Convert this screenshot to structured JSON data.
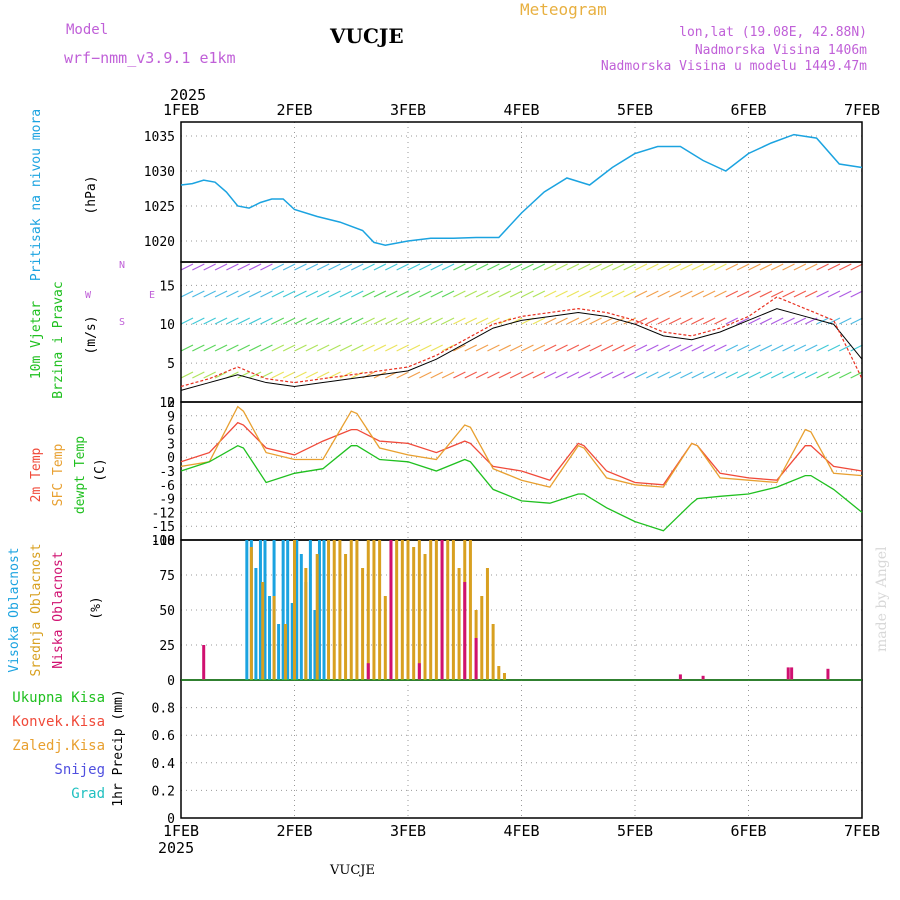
{
  "header": {
    "model_label": "Model",
    "model_name": "wrf−nmm_v3.9.1  e1km",
    "station": "VUCJE",
    "product": "Meteogram",
    "lonlat": "lon,lat (19.08E, 42.88N)",
    "altitude": "Nadmorska Visina 1406m",
    "model_altitude": "Nadmorska Visina u modelu 1449.47m",
    "year_top": "2025",
    "year_bottom": "2025",
    "footer_station": "VUCJE",
    "credit": "made by Angel"
  },
  "colors": {
    "pressure": "#1ba3e0",
    "t2m": "#f04a3a",
    "sfc": "#e8a030",
    "dew": "#20c020",
    "wind_black": "#000000",
    "wind_red": "#e83020",
    "cloud_high": "#1ba3e0",
    "cloud_mid": "#d8a020",
    "cloud_low": "#d01070",
    "label_purple": "#c060d8",
    "label_orange": "#e8b040"
  },
  "x_ticks": [
    "1FEB",
    "2FEB",
    "3FEB",
    "4FEB",
    "5FEB",
    "6FEB",
    "7FEB"
  ],
  "chart_data": [
    {
      "type": "line",
      "panel": "pressure",
      "ylabel_lines": [
        "Pritisak na nivou mora",
        "(hPa)"
      ],
      "ylim": [
        1017,
        1037
      ],
      "yticks": [
        1020,
        1025,
        1030,
        1035
      ],
      "grid": true,
      "x_days": [
        0,
        0.1,
        0.2,
        0.3,
        0.4,
        0.5,
        0.6,
        0.7,
        0.8,
        0.9,
        1.0,
        1.2,
        1.4,
        1.6,
        1.7,
        1.8,
        2.0,
        2.2,
        2.4,
        2.6,
        2.8,
        3.0,
        3.2,
        3.4,
        3.6,
        3.8,
        4.0,
        4.2,
        4.4,
        4.6,
        4.8,
        5.0,
        5.2,
        5.4,
        5.6,
        5.8,
        6.0
      ],
      "series": [
        {
          "values": [
            1028,
            1028.2,
            1028.7,
            1028.4,
            1027,
            1025,
            1024.7,
            1025.5,
            1026,
            1026,
            1024.5,
            1023.5,
            1022.7,
            1021.5,
            1019.8,
            1019.4,
            1020,
            1020.4,
            1020.4,
            1020.5,
            1020.5,
            1024,
            1027,
            1029,
            1028,
            1030.5,
            1032.5,
            1033.5,
            1033.5,
            1031.5,
            1030,
            1032.5,
            1034,
            1035.2,
            1034.7,
            1031,
            1030.5
          ]
        }
      ]
    },
    {
      "type": "line",
      "panel": "wind",
      "ylabel_lines": [
        "10m Vjetar",
        "Brzina i Pravac",
        "(m/s)"
      ],
      "compass": [
        "N",
        "E",
        "S",
        "W"
      ],
      "ylim": [
        0,
        18
      ],
      "yticks": [
        0,
        5,
        10,
        15
      ],
      "grid": true,
      "x_days": [
        0,
        0.25,
        0.5,
        0.75,
        1.0,
        1.25,
        1.5,
        1.75,
        2.0,
        2.25,
        2.5,
        2.75,
        3.0,
        3.25,
        3.5,
        3.75,
        4.0,
        4.25,
        4.5,
        4.75,
        5.0,
        5.25,
        5.5,
        5.75,
        6.0
      ],
      "series": [
        {
          "values": [
            1.5,
            2.5,
            3.5,
            2.5,
            2,
            2.5,
            3,
            3.5,
            4,
            5.5,
            7.5,
            9.5,
            10.5,
            11,
            11.5,
            11,
            10,
            8.5,
            8,
            9,
            10.5,
            12,
            11,
            10,
            5.5
          ]
        },
        {
          "values": [
            2,
            3,
            4.5,
            3,
            2.5,
            3,
            3.5,
            4,
            4.5,
            6,
            8,
            10,
            11,
            11.5,
            12,
            11.5,
            10.5,
            9,
            8.5,
            9.5,
            11,
            13.5,
            12,
            10.5,
            3
          ]
        }
      ]
    },
    {
      "type": "line",
      "panel": "temperature",
      "ylabel_lines": [
        "2m Temp",
        "SFC Temp",
        "dewpt Temp",
        "(C)"
      ],
      "ylim": [
        -18,
        12
      ],
      "yticks": [
        -18,
        -15,
        -12,
        -9,
        -6,
        -3,
        0,
        3,
        6,
        9,
        12
      ],
      "grid": true,
      "x_days": [
        0,
        0.25,
        0.5,
        0.55,
        0.75,
        1.0,
        1.25,
        1.5,
        1.55,
        1.75,
        2.0,
        2.25,
        2.5,
        2.55,
        2.75,
        3.0,
        3.25,
        3.5,
        3.55,
        3.75,
        4.0,
        4.25,
        4.5,
        4.55,
        4.75,
        5.0,
        5.25,
        5.5,
        5.55,
        5.75,
        6.0
      ],
      "series": [
        {
          "values": [
            -1,
            1,
            7.5,
            7,
            2,
            0.5,
            3.5,
            6,
            6,
            3.5,
            3,
            1,
            3.5,
            3,
            -2,
            -3,
            -5,
            3,
            2.5,
            -3,
            -5.5,
            -6,
            3,
            2.5,
            -3.5,
            -4.5,
            -5,
            2.5,
            2.5,
            -2,
            -3
          ]
        },
        {
          "values": [
            -2,
            -1,
            11,
            10,
            1,
            -0.5,
            -0.5,
            10,
            9.5,
            2,
            0.5,
            -0.5,
            7,
            6.5,
            -2.5,
            -5,
            -6.5,
            2.5,
            2,
            -4.5,
            -6,
            -6.5,
            3,
            2.5,
            -4.5,
            -5,
            -5.5,
            6,
            5.5,
            -3.5,
            -4
          ]
        },
        {
          "values": [
            -3,
            -1,
            2.5,
            2,
            -5.5,
            -3.5,
            -2.5,
            2.5,
            2.5,
            -0.5,
            -1,
            -3,
            -0.5,
            -1,
            -7,
            -9.5,
            -10,
            -8,
            -8,
            -11,
            -14,
            -16,
            -10,
            -9,
            -8.5,
            -8,
            -6.5,
            -4,
            -4,
            -7,
            -12
          ]
        }
      ]
    },
    {
      "type": "bar",
      "panel": "clouds",
      "ylabel_lines": [
        "Visoka Oblacnost",
        "Srednja Oblacnost",
        "Niska Oblacnost",
        "(%)"
      ],
      "ylim": [
        0,
        100
      ],
      "yticks": [
        0,
        25,
        50,
        75,
        100
      ],
      "grid": true,
      "series": [
        {
          "x_days": [
            0.58,
            0.62,
            0.66,
            0.7,
            0.74,
            0.78,
            0.82,
            0.86,
            0.9,
            0.94,
            0.98,
            1.02,
            1.06,
            1.1,
            1.14,
            1.18,
            1.22,
            1.26
          ],
          "values": [
            100,
            100,
            80,
            100,
            100,
            60,
            100,
            40,
            100,
            100,
            55,
            100,
            90,
            70,
            100,
            50,
            100,
            100
          ]
        },
        {
          "x_days": [
            0.62,
            0.72,
            0.82,
            0.92,
            1.0,
            1.1,
            1.2,
            1.3,
            1.35,
            1.4,
            1.45,
            1.5,
            1.55,
            1.6,
            1.65,
            1.7,
            1.75,
            1.8,
            1.85,
            1.9,
            1.95,
            2.0,
            2.05,
            2.1,
            2.15,
            2.2,
            2.25,
            2.3,
            2.35,
            2.4,
            2.45,
            2.5,
            2.55,
            2.6,
            2.65,
            2.7,
            2.75,
            2.8,
            2.85
          ],
          "values": [
            95,
            70,
            60,
            40,
            100,
            80,
            90,
            100,
            100,
            100,
            90,
            100,
            100,
            80,
            100,
            100,
            100,
            60,
            100,
            100,
            100,
            100,
            95,
            100,
            90,
            100,
            100,
            100,
            100,
            100,
            80,
            100,
            100,
            50,
            60,
            80,
            40,
            10,
            5
          ]
        },
        {
          "x_days": [
            0.2,
            1.65,
            1.85,
            2.1,
            2.3,
            2.5,
            2.6,
            4.4,
            4.6,
            5.35,
            5.38,
            5.7
          ],
          "values": [
            25,
            12,
            100,
            12,
            100,
            70,
            30,
            4,
            3,
            9,
            9,
            8
          ]
        }
      ]
    },
    {
      "type": "line",
      "panel": "precipitation",
      "ylabel_lines": [
        "1hr Precip (mm)"
      ],
      "legend": [
        "Ukupna Kisa",
        "Konvek.Kisa",
        "Zaledj.Kisa",
        "Snijeg",
        "Grad"
      ],
      "legend_colors": [
        "#20c020",
        "#f04a3a",
        "#e8a030",
        "#5050e0",
        "#20c0c0"
      ],
      "ylim": [
        0,
        1
      ],
      "yticks": [
        0,
        0.2,
        0.4,
        0.6,
        0.8
      ],
      "grid": true,
      "series": [
        {
          "values": [
            0,
            0,
            0,
            0,
            0,
            0,
            0
          ]
        }
      ]
    }
  ]
}
